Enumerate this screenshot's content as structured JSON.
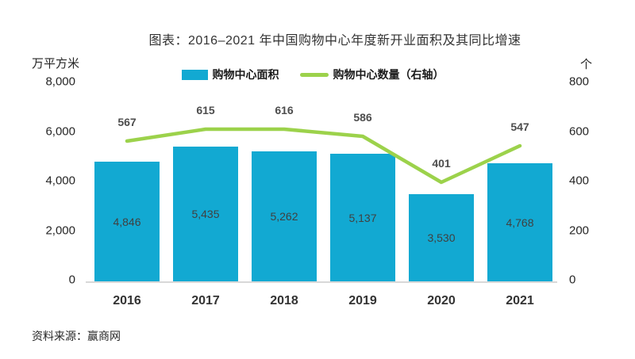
{
  "title": "图表：2016–2021 年中国购物中心年度新开业面积及其同比增速",
  "legend": {
    "area_label": "购物中心面积",
    "count_label": "购物中心数量（右轴）"
  },
  "left_axis": {
    "unit": "万平方米",
    "ticks": [
      "8,000",
      "6,000",
      "4,000",
      "2,000",
      "0"
    ]
  },
  "right_axis": {
    "unit": "个",
    "ticks": [
      "800",
      "600",
      "400",
      "200",
      "0"
    ]
  },
  "source": "资料来源：赢商网",
  "colors": {
    "bar": "#12a9d2",
    "line": "#9cd24b",
    "baseline": "#d8d8d8"
  },
  "chart_data": {
    "type": "bar",
    "subtype": "bar+line combo",
    "categories": [
      "2016",
      "2017",
      "2018",
      "2019",
      "2020",
      "2021"
    ],
    "series": [
      {
        "name": "购物中心面积",
        "type": "bar",
        "axis": "left",
        "values": [
          4846,
          5435,
          5262,
          5137,
          3530,
          4768
        ],
        "labels": [
          "4,846",
          "5,435",
          "5,262",
          "5,137",
          "3,530",
          "4,768"
        ],
        "color": "#12a9d2"
      },
      {
        "name": "购物中心数量（右轴）",
        "type": "line",
        "axis": "right",
        "values": [
          567,
          615,
          616,
          586,
          401,
          547
        ],
        "labels": [
          "567",
          "615",
          "616",
          "586",
          "401",
          "547"
        ],
        "color": "#9cd24b"
      }
    ],
    "title": "图表：2016–2021 年中国购物中心年度新开业面积及其同比增速",
    "xlabel": "",
    "ylabel_left": "万平方米",
    "ylabel_right": "个",
    "left_ylim": [
      0,
      8000
    ],
    "right_ylim": [
      0,
      800
    ],
    "grid": false,
    "legend_position": "top"
  }
}
